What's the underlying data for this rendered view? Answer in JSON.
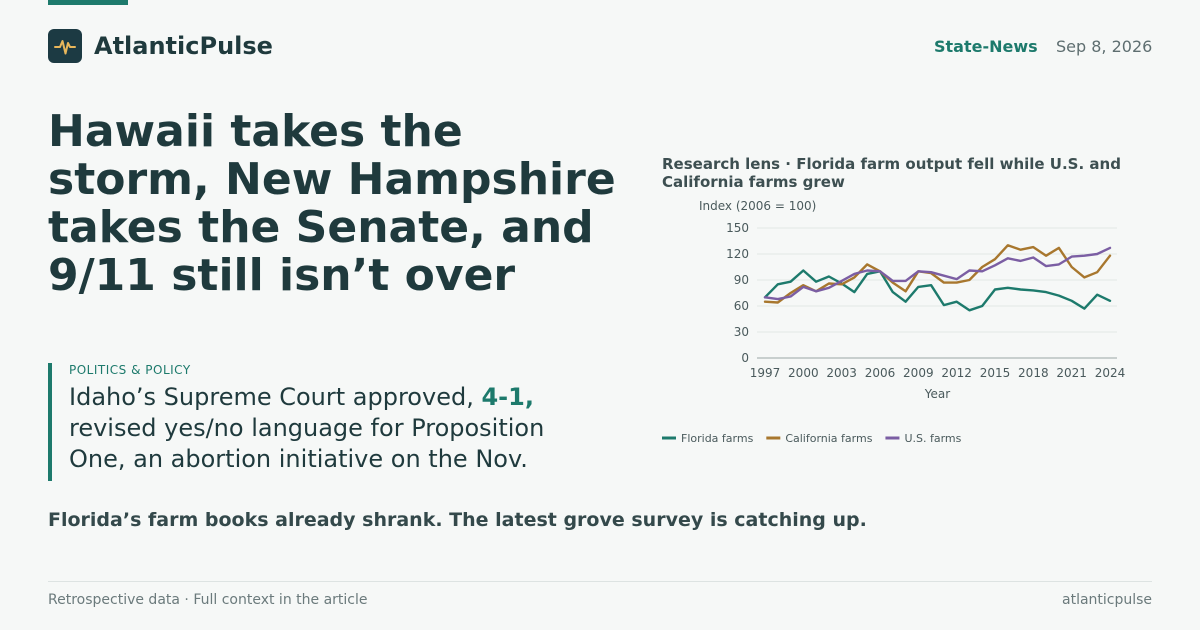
{
  "brand": {
    "name": "AtlanticPulse",
    "logo_icon": "pulse-icon"
  },
  "header": {
    "section": "State-News",
    "date": "Sep 8, 2026"
  },
  "headline": "Hawaii takes the storm, New Hampshire takes the Senate, and 9/11 still isn’t over",
  "quote": {
    "kicker": "POLITICS & POLICY",
    "text_before": "Idaho’s Supreme Court approved, ",
    "highlight": "4-1,",
    "text_after": " revised yes/no language for Proposition One, an abortion initiative on the Nov."
  },
  "deck": "Florida’s farm books already shrank. The latest grove survey is catching up.",
  "footer": {
    "left": "Retrospective data · Full context in the article",
    "right": "atlanticpulse"
  },
  "colors": {
    "accent": "#1d7a6c",
    "ink": "#1f3a3d",
    "background": "#f6f8f7"
  },
  "chart_data": {
    "type": "line",
    "title": "Research lens · Florida farm output fell while U.S. and California farms grew",
    "ylabel": "Index (2006 = 100)",
    "xlabel": "Year",
    "ylim": [
      0,
      150
    ],
    "yticks": [
      0,
      30,
      60,
      90,
      120,
      150
    ],
    "xlim": [
      1997,
      2024
    ],
    "xticks": [
      1997,
      2000,
      2003,
      2006,
      2009,
      2012,
      2015,
      2018,
      2021,
      2024
    ],
    "x": [
      1997,
      1998,
      1999,
      2000,
      2001,
      2002,
      2003,
      2004,
      2005,
      2006,
      2007,
      2008,
      2009,
      2010,
      2011,
      2012,
      2013,
      2014,
      2015,
      2016,
      2017,
      2018,
      2019,
      2020,
      2021,
      2022,
      2023,
      2024
    ],
    "grid": true,
    "legend": "bottom",
    "series": [
      {
        "name": "Florida farms",
        "color": "#1d7a6c",
        "values": [
          70,
          85,
          88,
          101,
          88,
          94,
          86,
          76,
          97,
          100,
          76,
          65,
          82,
          84,
          61,
          65,
          55,
          60,
          79,
          81,
          79,
          78,
          76,
          72,
          66,
          57,
          73,
          66
        ]
      },
      {
        "name": "California farms",
        "color": "#a8772e",
        "values": [
          65,
          64,
          75,
          84,
          77,
          86,
          85,
          93,
          108,
          100,
          87,
          77,
          100,
          98,
          87,
          87,
          90,
          105,
          114,
          130,
          125,
          128,
          118,
          127,
          105,
          93,
          99,
          118
        ]
      },
      {
        "name": "U.S. farms",
        "color": "#7b5ea3",
        "values": [
          70,
          68,
          71,
          82,
          77,
          81,
          89,
          97,
          101,
          100,
          89,
          89,
          100,
          99,
          95,
          91,
          101,
          100,
          107,
          115,
          112,
          116,
          106,
          108,
          117,
          118,
          120,
          127
        ]
      }
    ]
  }
}
